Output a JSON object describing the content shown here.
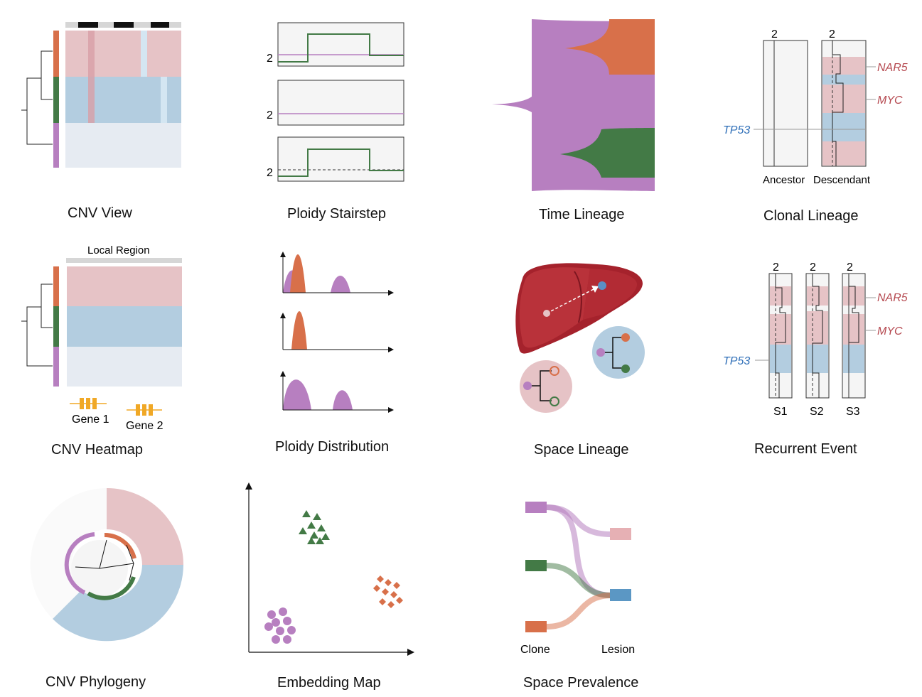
{
  "colors": {
    "orange": "#d8704a",
    "green": "#437a46",
    "purple": "#b77fc0",
    "pink_band": "#e6c3c6",
    "blue_band": "#b3cde0",
    "gray_band": "#e6ebf2",
    "red_label": "#b5484f",
    "blue_label": "#2f6fb8",
    "liver": "#a5222c",
    "gene": "#f0a826",
    "panel_bg": "#f5f5f5"
  },
  "panels": {
    "cnv_view": {
      "caption": "CNV View"
    },
    "ploidy_stairstep": {
      "caption": "Ploidy Stairstep",
      "tick": "2"
    },
    "time_lineage": {
      "caption": "Time Lineage"
    },
    "clonal_lineage": {
      "caption": "Clonal Lineage",
      "tick": "2",
      "ancestor": "Ancestor",
      "descendant": "Descendant",
      "gene_nar5": "NAR5",
      "gene_myc": "MYC",
      "gene_tp53": "TP53"
    },
    "cnv_heatmap": {
      "caption": "CNV Heatmap",
      "region_label": "Local Region",
      "gene1": "Gene 1",
      "gene2": "Gene 2"
    },
    "ploidy_distribution": {
      "caption": "Ploidy Distribution"
    },
    "space_lineage": {
      "caption": "Space Lineage"
    },
    "recurrent_event": {
      "caption": "Recurrent Event",
      "tick": "2",
      "samples": [
        "S1",
        "S2",
        "S3"
      ],
      "gene_nar5": "NAR5",
      "gene_myc": "MYC",
      "gene_tp53": "TP53"
    },
    "cnv_phylogeny": {
      "caption": "CNV Phylogeny"
    },
    "embedding_map": {
      "caption": "Embedding Map"
    },
    "space_prevalence": {
      "caption": "Space Prevalence",
      "clone_label": "Clone",
      "lesion_label": "Lesion"
    }
  }
}
